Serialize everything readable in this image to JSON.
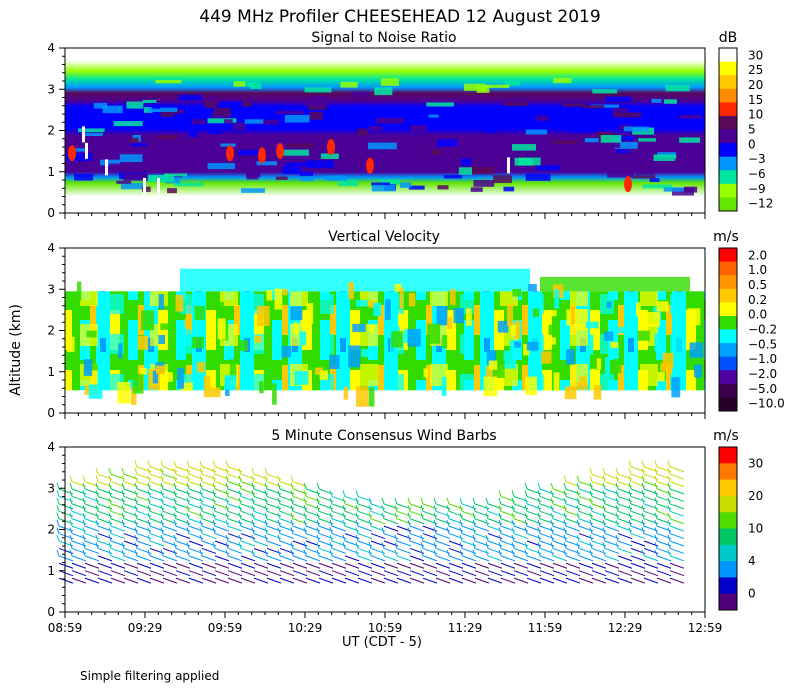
{
  "figure": {
    "title": "449 MHz Profiler CHEESEHEAD 12 August 2019",
    "ylabel": "Altitude (km)",
    "xlabel": "UT  (CDT - 5)",
    "footnote": "Simple filtering applied"
  },
  "chart_data": [
    {
      "type": "heatmap",
      "title": "Signal to Noise Ratio",
      "unit": "dB",
      "ylim": [
        0,
        4
      ],
      "yticks": [
        0,
        1,
        2,
        3,
        4
      ],
      "xlim": [
        "08:59",
        "12:59"
      ],
      "xticks": [
        "08:59",
        "09:29",
        "09:59",
        "10:29",
        "10:59",
        "11:29",
        "11:59",
        "12:29",
        "12:59"
      ],
      "colorbar": {
        "ticks": [
          "30",
          "25",
          "20",
          "15",
          "10",
          "5",
          "0",
          "−3",
          "−6",
          "−9",
          "−12"
        ],
        "colors": [
          "#ffffff",
          "#ffff00",
          "#ffc800",
          "#ff8c00",
          "#ff2800",
          "#5a0a5a",
          "#4b0096",
          "#0000ff",
          "#0096ff",
          "#00e6a0",
          "#96ff00",
          "#64e600"
        ]
      },
      "layers": [
        {
          "range_km": [
            0.4,
            0.6
          ],
          "value_db": -10
        },
        {
          "range_km": [
            0.6,
            1.6
          ],
          "value_db": 3
        },
        {
          "range_km": [
            1.6,
            2.6
          ],
          "value_db": -1
        },
        {
          "range_km": [
            2.6,
            3.0
          ],
          "value_db": 2
        },
        {
          "range_km": [
            3.0,
            3.3
          ],
          "value_db": -7
        },
        {
          "range_km": [
            3.3,
            3.6
          ],
          "value_db": -11
        }
      ]
    },
    {
      "type": "heatmap",
      "title": "Vertical Velocity",
      "unit": "m/s",
      "ylim": [
        0,
        4
      ],
      "yticks": [
        0,
        1,
        2,
        3,
        4
      ],
      "xlim": [
        "08:59",
        "12:59"
      ],
      "xticks": [
        "08:59",
        "09:29",
        "09:59",
        "10:29",
        "10:59",
        "11:29",
        "11:59",
        "12:29",
        "12:59"
      ],
      "colorbar": {
        "ticks": [
          "2.0",
          "1.0",
          "0.5",
          "0.2",
          "0.0",
          "−0.2",
          "−0.5",
          "−1.0",
          "−2.0",
          "−5.0",
          "−10.0"
        ],
        "colors": [
          "#ff0000",
          "#ff6400",
          "#ff9600",
          "#ffc800",
          "#ffff00",
          "#32dc00",
          "#00ffff",
          "#00a0ff",
          "#0050ff",
          "#5000a0",
          "#3c0050",
          "#280028"
        ]
      },
      "valid_range_km": [
        0.55,
        3.5
      ]
    },
    {
      "type": "barbs",
      "title": "5 Minute Consensus Wind Barbs",
      "unit": "m/s",
      "ylim": [
        0,
        4
      ],
      "yticks": [
        0,
        1,
        2,
        3,
        4
      ],
      "xlim": [
        "08:59",
        "12:59"
      ],
      "xticks": [
        "08:59",
        "09:29",
        "09:59",
        "10:29",
        "10:59",
        "11:29",
        "11:59",
        "12:29",
        "12:59"
      ],
      "colorbar": {
        "ticks": [
          "30",
          "20",
          "10",
          "4",
          "0"
        ],
        "colors": [
          "#ff0000",
          "#ff7800",
          "#ffc800",
          "#c8dc00",
          "#50dc00",
          "#00c864",
          "#00c8c8",
          "#0096ff",
          "#0000c8",
          "#50007a"
        ]
      },
      "speed_profile": [
        {
          "range_km": [
            0.6,
            1.1
          ],
          "speed_ms": 2
        },
        {
          "range_km": [
            1.1,
            2.0
          ],
          "speed_ms": 5
        },
        {
          "range_km": [
            2.0,
            3.0
          ],
          "speed_ms": 9
        },
        {
          "range_km": [
            3.0,
            4.0
          ],
          "speed_ms": 14
        }
      ]
    }
  ]
}
